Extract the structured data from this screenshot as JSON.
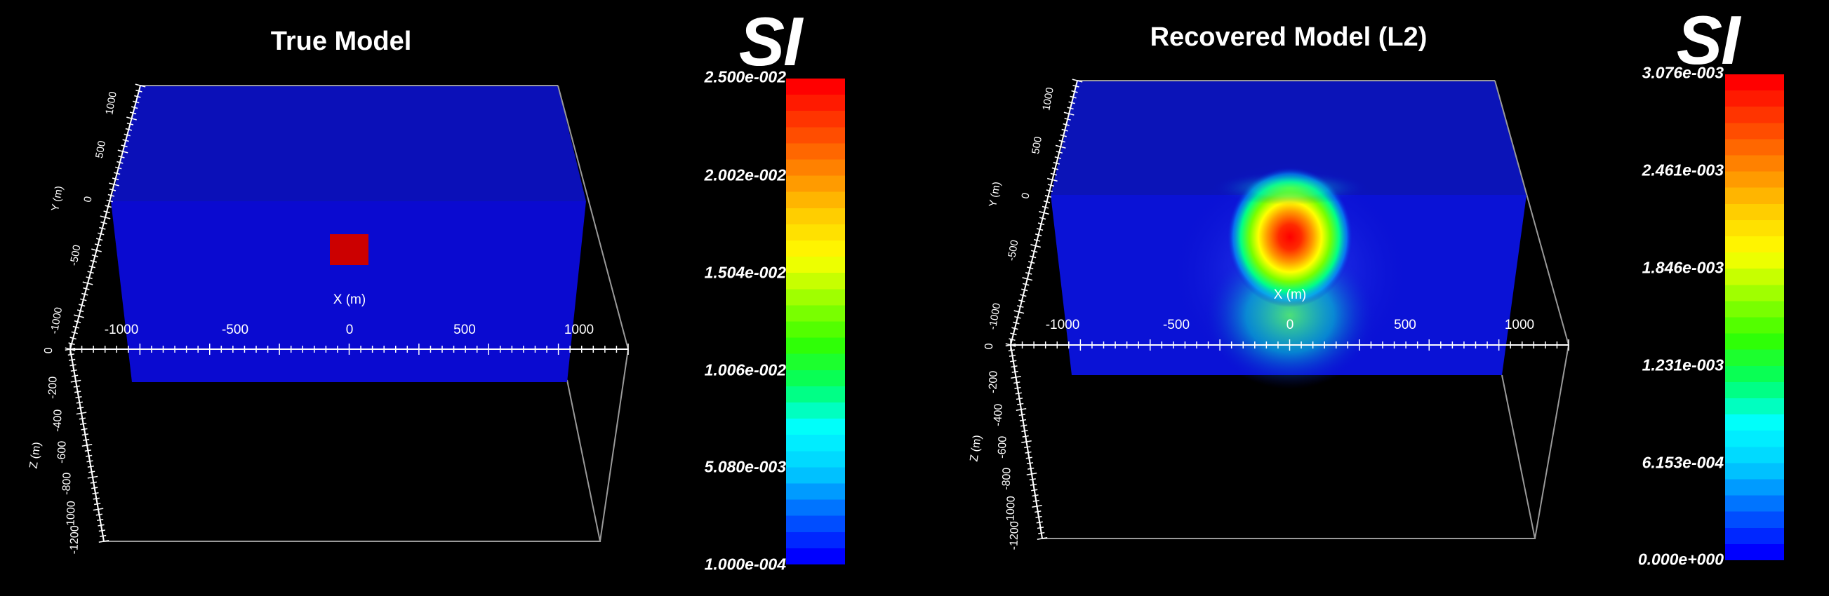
{
  "panels": {
    "true_model": {
      "title": "True Model",
      "unit": "SI",
      "x_axis_label": "X (m)",
      "x_ticks": [
        "-1000",
        "-500",
        "0",
        "500",
        "1000"
      ],
      "y_axis_label": "Y (m)",
      "y_ticks": [
        "1000",
        "500",
        "0",
        "-500",
        "-1000"
      ],
      "z_axis_label": "Z (m)",
      "z_ticks": [
        "0",
        "-200",
        "-400",
        "-600",
        "-800",
        "-1000",
        "-1200"
      ],
      "colorbar_labels": [
        "2.500e-002",
        "2.002e-002",
        "1.504e-002",
        "1.006e-002",
        "5.080e-003",
        "1.000e-004"
      ],
      "colorbar_range": [
        0.0001,
        0.025
      ]
    },
    "recovered_model": {
      "title": "Recovered Model (L2)",
      "unit": "SI",
      "x_axis_label": "X (m)",
      "x_ticks": [
        "-1000",
        "-500",
        "0",
        "500",
        "1000"
      ],
      "y_axis_label": "Y (m)",
      "y_ticks": [
        "1000",
        "500",
        "0",
        "-500",
        "-1000"
      ],
      "z_axis_label": "Z (m)",
      "z_ticks": [
        "0",
        "-200",
        "-400",
        "-600",
        "-800",
        "-1000",
        "-1200"
      ],
      "colorbar_labels": [
        "3.076e-003",
        "2.461e-003",
        "1.846e-003",
        "1.231e-003",
        "6.153e-004",
        "0.000e+000"
      ],
      "colorbar_range": [
        0.0,
        0.003076
      ]
    }
  },
  "colors": {
    "background": "#000000",
    "block_fill": "#0a0ad0",
    "anomaly": "#cc0000",
    "axis_lines": "#ffffff",
    "bbox_lines": "#9a9a9a"
  },
  "colormap": [
    "#0000ff",
    "#0066ff",
    "#00ccff",
    "#00ffff",
    "#00ff66",
    "#33ff00",
    "#99ff00",
    "#ffff00",
    "#ffcc00",
    "#ff8800",
    "#ff4400",
    "#ff0000"
  ]
}
